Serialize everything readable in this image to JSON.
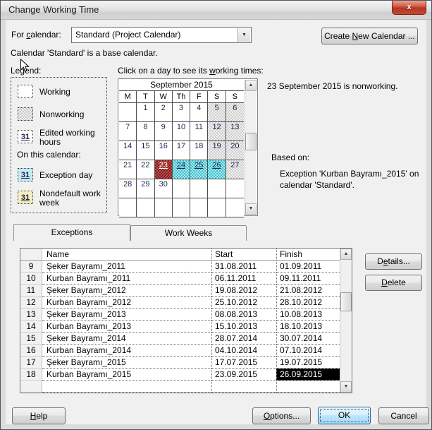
{
  "window": {
    "title": "Change Working Time",
    "close_glyph": "x"
  },
  "header": {
    "for_calendar": {
      "pre": "For ",
      "mn": "c",
      "post": "alendar:"
    },
    "calendar_value": "Standard (Project Calendar)",
    "combo_arrow": "▼",
    "create_new_calendar": {
      "pre": "Create ",
      "mn": "N",
      "post": "ew Calendar ..."
    },
    "base_note": "Calendar 'Standard' is a base calendar."
  },
  "legend": {
    "label": "Legend:",
    "working": "Working",
    "nonworking": "Nonworking",
    "edited": "Edited working hours",
    "on_this_calendar": "On this calendar:",
    "exception_day": "Exception day",
    "nondefault": "Nondefault work week",
    "swatch_number": "31"
  },
  "calendar": {
    "hint": {
      "pre": "Click on a day to see its ",
      "mn": "w",
      "post": "orking times:"
    },
    "month_title": "September 2015",
    "weekday_headers": [
      "M",
      "T",
      "W",
      "Th",
      "F",
      "S",
      "S"
    ],
    "weeks": [
      [
        {
          "d": "",
          "t": "blank"
        },
        {
          "d": "1",
          "t": "n"
        },
        {
          "d": "2",
          "t": "n"
        },
        {
          "d": "3",
          "t": "n"
        },
        {
          "d": "4",
          "t": "n"
        },
        {
          "d": "5",
          "t": "we"
        },
        {
          "d": "6",
          "t": "we"
        }
      ],
      [
        {
          "d": "7",
          "t": "n"
        },
        {
          "d": "8",
          "t": "n"
        },
        {
          "d": "9",
          "t": "n"
        },
        {
          "d": "10",
          "t": "n"
        },
        {
          "d": "11",
          "t": "n"
        },
        {
          "d": "12",
          "t": "we"
        },
        {
          "d": "13",
          "t": "we"
        }
      ],
      [
        {
          "d": "14",
          "t": "n"
        },
        {
          "d": "15",
          "t": "n"
        },
        {
          "d": "16",
          "t": "n"
        },
        {
          "d": "17",
          "t": "n"
        },
        {
          "d": "18",
          "t": "n"
        },
        {
          "d": "19",
          "t": "we"
        },
        {
          "d": "20",
          "t": "we"
        }
      ],
      [
        {
          "d": "21",
          "t": "n"
        },
        {
          "d": "22",
          "t": "n"
        },
        {
          "d": "23",
          "t": "sel",
          "u": true
        },
        {
          "d": "24",
          "t": "exc",
          "u": true
        },
        {
          "d": "25",
          "t": "exc",
          "u": true
        },
        {
          "d": "26",
          "t": "exc",
          "u": true
        },
        {
          "d": "27",
          "t": "we"
        }
      ],
      [
        {
          "d": "28",
          "t": "n"
        },
        {
          "d": "29",
          "t": "n"
        },
        {
          "d": "30",
          "t": "n"
        },
        {
          "d": "",
          "t": "blank"
        },
        {
          "d": "",
          "t": "blank"
        },
        {
          "d": "",
          "t": "blank"
        },
        {
          "d": "",
          "t": "blank"
        }
      ],
      [
        {
          "d": "",
          "t": "blank"
        },
        {
          "d": "",
          "t": "blank"
        },
        {
          "d": "",
          "t": "blank"
        },
        {
          "d": "",
          "t": "blank"
        },
        {
          "d": "",
          "t": "blank"
        },
        {
          "d": "",
          "t": "blank"
        },
        {
          "d": "",
          "t": "blank"
        }
      ]
    ],
    "scroll_up": "▲",
    "scroll_down": "▼"
  },
  "info": {
    "selected_day": "23 September 2015 is nonworking.",
    "based_on_label": "Based on:",
    "based_on_detail": "Exception 'Kurban Bayramı_2015' on calendar 'Standard'."
  },
  "tabs": {
    "exceptions": "Exceptions",
    "work_weeks": "Work Weeks"
  },
  "exceptions_table": {
    "columns": {
      "num": "",
      "name": "Name",
      "start": "Start",
      "finish": "Finish"
    },
    "rows": [
      {
        "num": "9",
        "name": "Şeker Bayramı_2011",
        "start": "31.08.2011",
        "finish": "01.09.2011"
      },
      {
        "num": "10",
        "name": "Kurban Bayramı_2011",
        "start": "06.11.2011",
        "finish": "09.11.2011"
      },
      {
        "num": "11",
        "name": "Şeker Bayramı_2012",
        "start": "19.08.2012",
        "finish": "21.08.2012"
      },
      {
        "num": "12",
        "name": "Kurban Bayramı_2012",
        "start": "25.10.2012",
        "finish": "28.10.2012"
      },
      {
        "num": "13",
        "name": "Şeker Bayramı_2013",
        "start": "08.08.2013",
        "finish": "10.08.2013"
      },
      {
        "num": "14",
        "name": "Kurban Bayramı_2013",
        "start": "15.10.2013",
        "finish": "18.10.2013"
      },
      {
        "num": "15",
        "name": "Şeker Bayramı_2014",
        "start": "28.07.2014",
        "finish": "30.07.2014"
      },
      {
        "num": "16",
        "name": "Kurban Bayramı_2014",
        "start": "04.10.2014",
        "finish": "07.10.2014"
      },
      {
        "num": "17",
        "name": "Şeker Bayramı_2015",
        "start": "17.07.2015",
        "finish": "19.07.2015"
      },
      {
        "num": "18",
        "name": "Kurban Bayramı_2015",
        "start": "23.09.2015",
        "finish": "26.09.2015"
      }
    ],
    "selected": {
      "row_num": "18",
      "column": "finish"
    }
  },
  "side_buttons": {
    "details": {
      "pre": "D",
      "mn": "e",
      "post": "tails..."
    },
    "delete": {
      "pre": "",
      "mn": "D",
      "post": "elete"
    }
  },
  "footer": {
    "help": {
      "pre": "",
      "mn": "H",
      "post": "elp"
    },
    "options": {
      "pre": "",
      "mn": "O",
      "post": "ptions..."
    },
    "ok": "OK",
    "cancel": "Cancel"
  },
  "colors": {
    "selected_day_bg": "#9c2a2a",
    "exception_day_bg": "#54ccd8",
    "weekend_bg": "#d9d9d9",
    "exception_legend_bg": "#c5ecf0",
    "nondefault_legend_bg": "#f4efbc",
    "selected_cell_bg": "#000000",
    "close_button_bg": "#b53524",
    "default_button_border": "#2c628b"
  }
}
